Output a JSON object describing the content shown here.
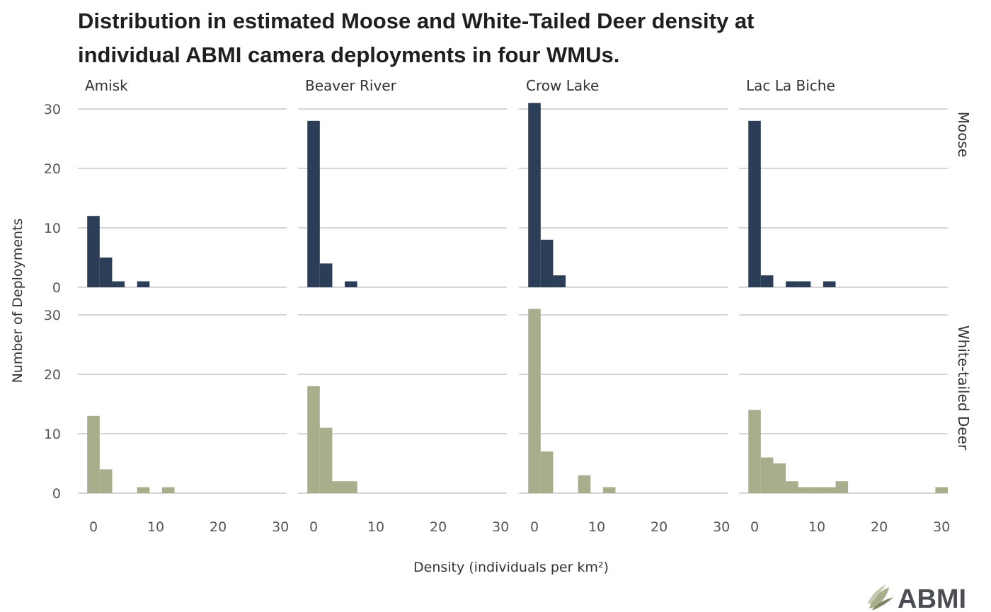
{
  "title_line1": "Distribution in estimated Moose and White-Tailed Deer density at",
  "title_line2": "individual ABMI camera deployments in four WMUs.",
  "logo_text": "ABMI",
  "chart_data": {
    "type": "bar",
    "subtype": "faceted-histogram",
    "xlabel": "Density (individuals per km²)",
    "ylabel": "Number of Deployments",
    "xlim": [
      -2.5,
      31
    ],
    "ylim": [
      0,
      31
    ],
    "xticks": [
      0,
      10,
      20,
      30
    ],
    "yticks": [
      0,
      10,
      20,
      30
    ],
    "bin_width": 2,
    "grid": "horizontal",
    "columns": [
      "Amisk",
      "Beaver River",
      "Crow Lake",
      "Lac La Biche"
    ],
    "rows": [
      {
        "name": "Moose",
        "color": "#2c3e57"
      },
      {
        "name": "White-tailed Deer",
        "color": "#a8ae8b"
      }
    ],
    "bin_starts": [
      -1,
      1,
      3,
      5,
      7,
      9,
      11,
      13,
      15,
      17,
      19,
      21,
      23,
      25,
      27,
      29
    ],
    "panels": [
      {
        "row": "Moose",
        "column": "Amisk",
        "counts": [
          12,
          5,
          1,
          0,
          1,
          0,
          0,
          0,
          0,
          0,
          0,
          0,
          0,
          0,
          0,
          0
        ]
      },
      {
        "row": "Moose",
        "column": "Beaver River",
        "counts": [
          28,
          4,
          0,
          1,
          0,
          0,
          0,
          0,
          0,
          0,
          0,
          0,
          0,
          0,
          0,
          0
        ]
      },
      {
        "row": "Moose",
        "column": "Crow Lake",
        "counts": [
          31,
          8,
          2,
          0,
          0,
          0,
          0,
          0,
          0,
          0,
          0,
          0,
          0,
          0,
          0,
          0
        ]
      },
      {
        "row": "Moose",
        "column": "Lac La Biche",
        "counts": [
          28,
          2,
          0,
          1,
          1,
          0,
          1,
          0,
          0,
          0,
          0,
          0,
          0,
          0,
          0,
          0
        ]
      },
      {
        "row": "White-tailed Deer",
        "column": "Amisk",
        "counts": [
          13,
          4,
          0,
          0,
          1,
          0,
          1,
          0,
          0,
          0,
          0,
          0,
          0,
          0,
          0,
          0
        ]
      },
      {
        "row": "White-tailed Deer",
        "column": "Beaver River",
        "counts": [
          18,
          11,
          2,
          2,
          0,
          0,
          0,
          0,
          0,
          0,
          0,
          0,
          0,
          0,
          0,
          0
        ]
      },
      {
        "row": "White-tailed Deer",
        "column": "Crow Lake",
        "counts": [
          31,
          7,
          0,
          0,
          3,
          0,
          1,
          0,
          0,
          0,
          0,
          0,
          0,
          0,
          0,
          0
        ]
      },
      {
        "row": "White-tailed Deer",
        "column": "Lac La Biche",
        "counts": [
          14,
          6,
          5,
          2,
          1,
          1,
          1,
          2,
          0,
          0,
          0,
          0,
          0,
          0,
          0,
          1
        ]
      }
    ]
  }
}
